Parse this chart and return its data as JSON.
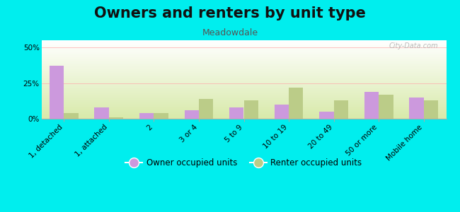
{
  "title": "Owners and renters by unit type",
  "subtitle": "Meadowdale",
  "categories": [
    "1, detached",
    "1, attached",
    "2",
    "3 or 4",
    "5 to 9",
    "10 to 19",
    "20 to 49",
    "50 or more",
    "Mobile home"
  ],
  "owner_values": [
    37,
    8,
    4,
    6,
    8,
    10,
    5,
    19,
    15
  ],
  "renter_values": [
    4,
    1,
    4,
    14,
    13,
    22,
    13,
    17,
    13
  ],
  "owner_color": "#cc99dd",
  "renter_color": "#bbcc88",
  "background_color": "#00eeee",
  "ylim": [
    0,
    55
  ],
  "yticks": [
    0,
    25,
    50
  ],
  "ytick_labels": [
    "0%",
    "25%",
    "50%"
  ],
  "bar_width": 0.32,
  "legend_owner": "Owner occupied units",
  "legend_renter": "Renter occupied units",
  "title_fontsize": 15,
  "subtitle_fontsize": 9,
  "tick_fontsize": 7.5,
  "watermark": "City-Data.com"
}
